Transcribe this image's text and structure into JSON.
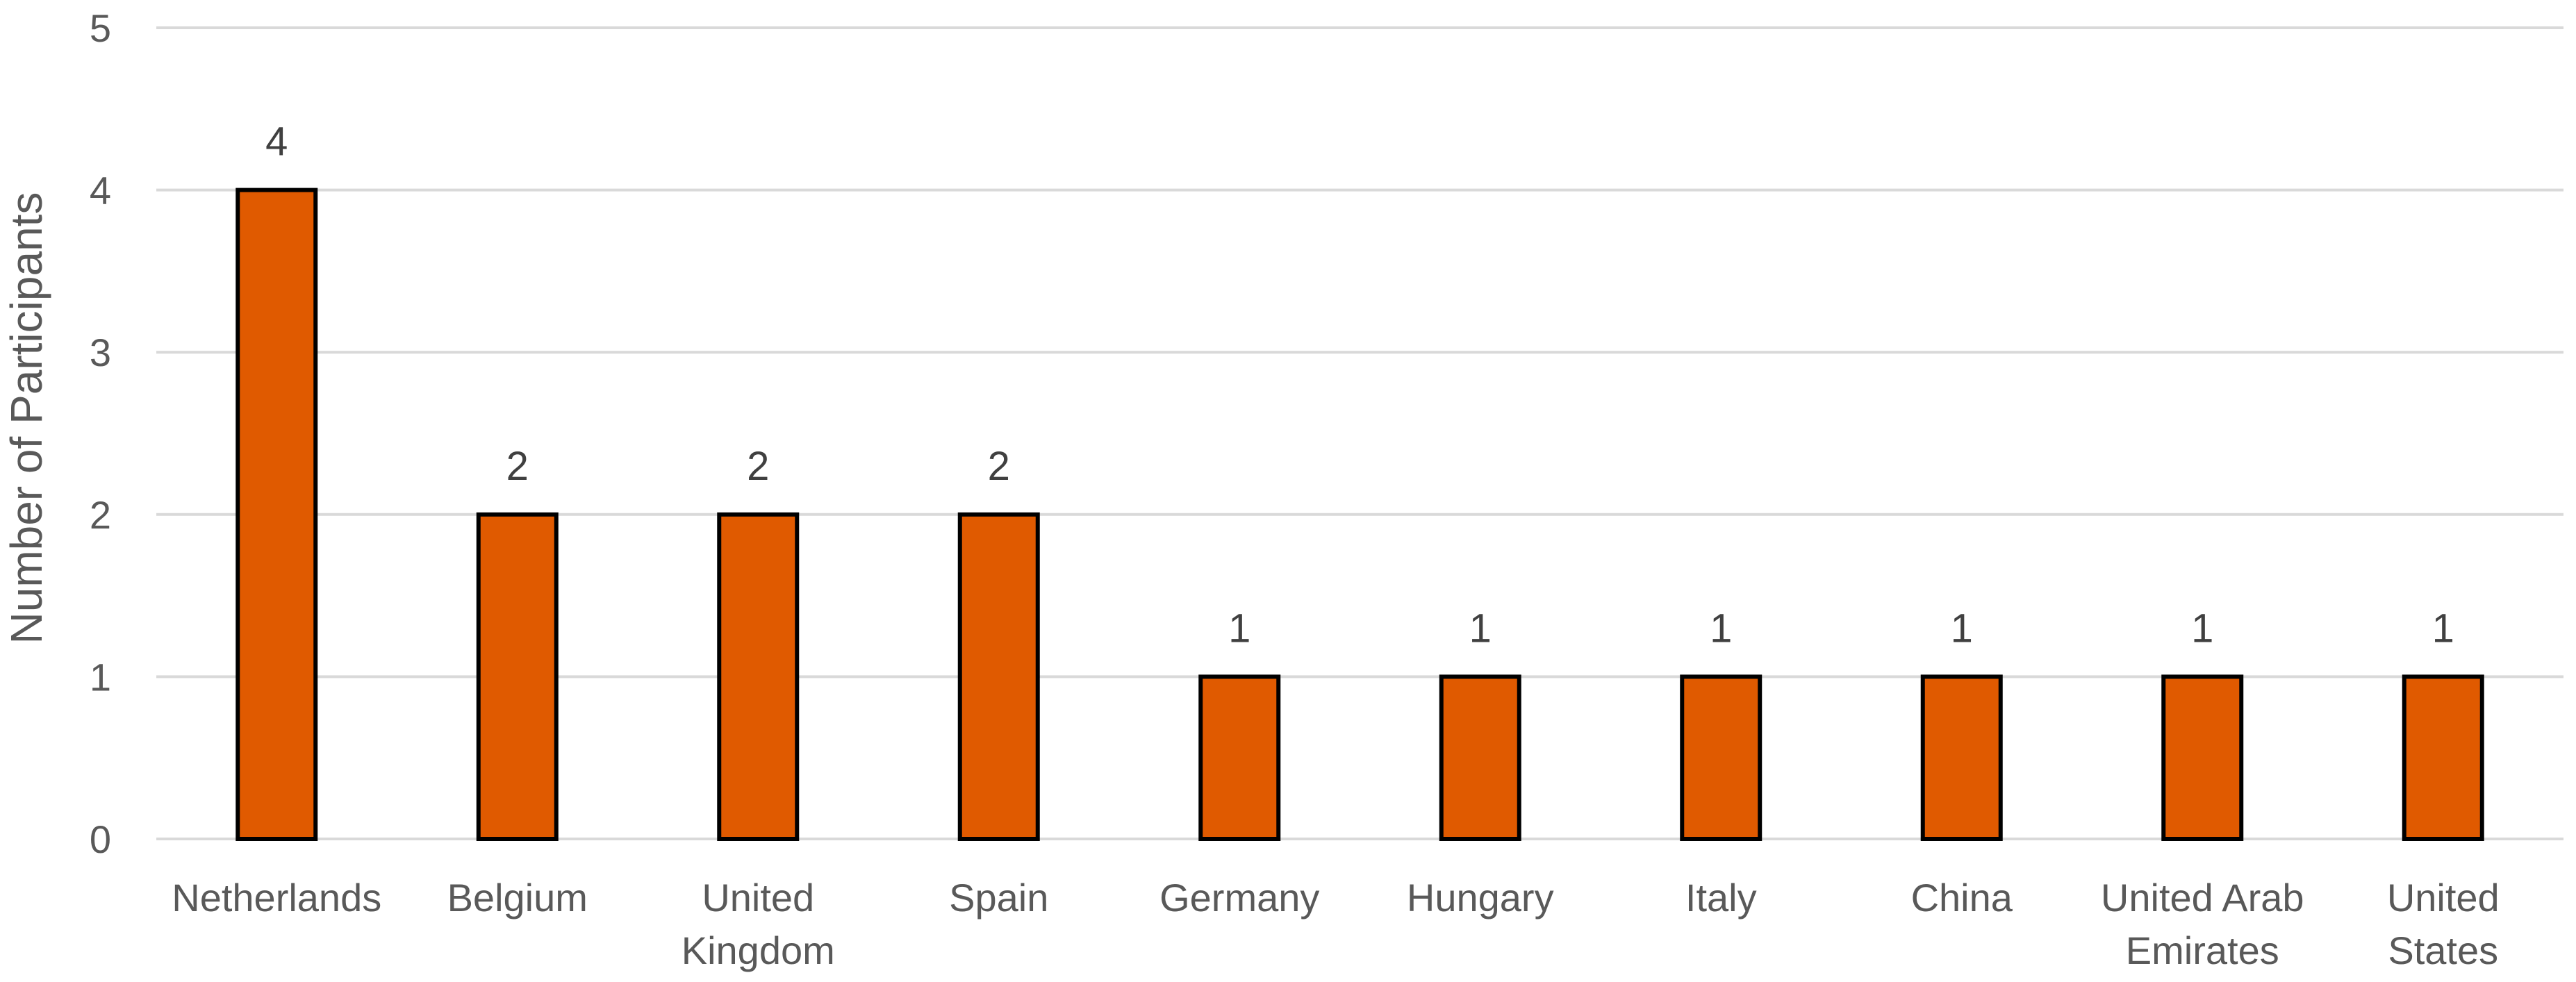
{
  "chart_data": {
    "type": "bar",
    "title": "",
    "xlabel": "",
    "ylabel": "Number of Participants",
    "ylim": [
      0,
      5
    ],
    "yticks": [
      0,
      1,
      2,
      3,
      4,
      5
    ],
    "grid": true,
    "categories": [
      [
        "Netherlands"
      ],
      [
        "Belgium"
      ],
      [
        "United",
        "Kingdom"
      ],
      [
        "Spain"
      ],
      [
        "Germany"
      ],
      [
        "Hungary"
      ],
      [
        "Italy"
      ],
      [
        "China"
      ],
      [
        "United Arab",
        "Emirates"
      ],
      [
        "United",
        "States"
      ]
    ],
    "values": [
      4,
      2,
      2,
      2,
      1,
      1,
      1,
      1,
      1,
      1
    ],
    "colors": {
      "bar_fill": "#e05a00",
      "bar_stroke": "#000000",
      "grid": "#d9d9d9"
    }
  }
}
